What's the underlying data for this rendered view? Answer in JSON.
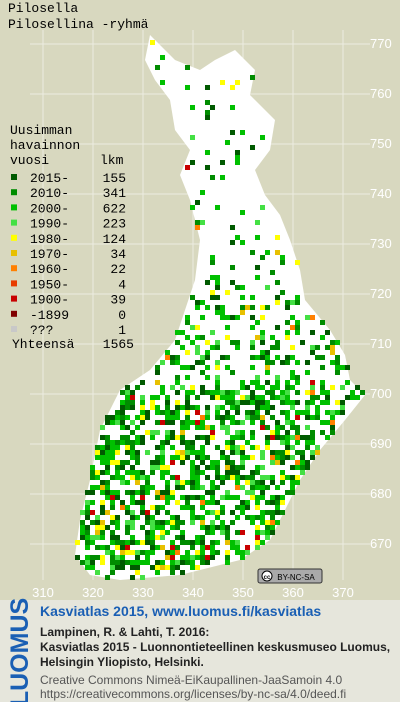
{
  "map": {
    "title_lines": [
      "Pilosella",
      "Pilosellina -ryhmä"
    ],
    "legend_header": [
      "Uusimman",
      "havainnon"
    ],
    "legend_col_year": "vuosi",
    "legend_col_count": "lkm",
    "legend": [
      {
        "label": "2015-",
        "count": 155,
        "color": "#005a00"
      },
      {
        "label": "2010-",
        "count": 341,
        "color": "#008c00"
      },
      {
        "label": "2000-",
        "count": 622,
        "color": "#00c000"
      },
      {
        "label": "1990-",
        "count": 223,
        "color": "#44e044"
      },
      {
        "label": "1980-",
        "count": 124,
        "color": "#ffff00"
      },
      {
        "label": "1970-",
        "count": 34,
        "color": "#e8c000"
      },
      {
        "label": "1960-",
        "count": 22,
        "color": "#ff8000"
      },
      {
        "label": "1950-",
        "count": 4,
        "color": "#e83c00"
      },
      {
        "label": "1900-",
        "count": 39,
        "color": "#c80000"
      },
      {
        "label": "-1899",
        "count": 0,
        "color": "#800000"
      },
      {
        "label": "???",
        "count": 1,
        "color": "#c8c8c8"
      }
    ],
    "total_label": "Yhteensä",
    "total": 1565,
    "northing_labels": [
      770,
      760,
      750,
      740,
      730,
      720,
      710,
      700,
      690,
      680,
      670
    ],
    "easting_labels": [
      310,
      320,
      330,
      340,
      350,
      360,
      370
    ],
    "cc_badge": "BY-NC-SA"
  },
  "footer": {
    "logo": "LUOMUS",
    "headline": "Kasviatlas 2015, www.luomus.fi/kasviatlas",
    "citation": [
      "Lampinen, R. & Lahti, T. 2016:",
      "Kasviatlas 2015 - Luonnontieteellinen keskusmuseo Luomus,",
      "Helsingin Yliopisto, Helsinki."
    ],
    "license": [
      "Creative Commons Nimeä-EiKaupallinen-JaaSamoin 4.0",
      "https://creativecommons.org/licenses/by-nc-sa/4.0/deed.fi"
    ]
  }
}
